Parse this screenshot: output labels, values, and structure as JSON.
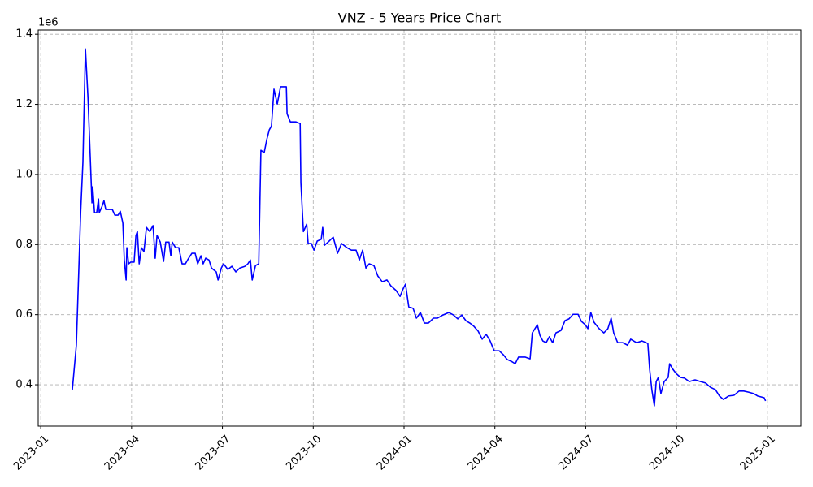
{
  "chart_data": {
    "type": "line",
    "title": "VNZ - 5 Years Price Chart",
    "y_offset_label": "1e6",
    "color": "#0000ff",
    "grid": true,
    "xlim": [
      2022.993,
      2025.092
    ],
    "ylim": [
      282000,
      1412000
    ],
    "xticks": [
      {
        "value": 2023,
        "label": "2023-01"
      },
      {
        "value": 2023.25,
        "label": "2023-04"
      },
      {
        "value": 2023.5,
        "label": "2023-07"
      },
      {
        "value": 2023.75,
        "label": "2023-10"
      },
      {
        "value": 2024,
        "label": "2024-01"
      },
      {
        "value": 2024.25,
        "label": "2024-04"
      },
      {
        "value": 2024.5,
        "label": "2024-07"
      },
      {
        "value": 2024.75,
        "label": "2024-10"
      },
      {
        "value": 2025,
        "label": "2025-01"
      }
    ],
    "yticks": [
      {
        "value": 400000,
        "label": "0.4"
      },
      {
        "value": 600000,
        "label": "0.6"
      },
      {
        "value": 800000,
        "label": "0.8"
      },
      {
        "value": 1000000,
        "label": "1.0"
      },
      {
        "value": 1200000,
        "label": "1.2"
      },
      {
        "value": 1400000,
        "label": "1.4"
      }
    ],
    "x": [
      2023.087,
      2023.092,
      2023.098,
      2023.11,
      2023.116,
      2023.123,
      2023.13,
      2023.136,
      2023.141,
      2023.143,
      2023.148,
      2023.154,
      2023.159,
      2023.161,
      2023.168,
      2023.174,
      2023.179,
      2023.186,
      2023.197,
      2023.204,
      2023.213,
      2023.219,
      2023.226,
      2023.23,
      2023.235,
      2023.237,
      2023.242,
      2023.248,
      2023.257,
      2023.262,
      2023.266,
      2023.271,
      2023.277,
      2023.284,
      2023.291,
      2023.3,
      2023.309,
      2023.315,
      2023.32,
      2023.329,
      2023.338,
      2023.344,
      2023.353,
      2023.358,
      2023.362,
      2023.371,
      2023.38,
      2023.389,
      2023.398,
      2023.407,
      2023.416,
      2023.425,
      2023.432,
      2023.441,
      2023.447,
      2023.454,
      2023.463,
      2023.47,
      2023.483,
      2023.488,
      2023.497,
      2023.503,
      2023.515,
      2023.526,
      2023.537,
      2023.548,
      2023.562,
      2023.57,
      2023.577,
      2023.582,
      2023.591,
      2023.6,
      2023.606,
      2023.615,
      2023.622,
      2023.629,
      2023.635,
      2023.642,
      2023.651,
      2023.66,
      2023.676,
      2023.678,
      2023.687,
      2023.693,
      2023.702,
      2023.714,
      2023.716,
      2023.723,
      2023.732,
      2023.736,
      2023.745,
      2023.752,
      2023.761,
      2023.772,
      2023.776,
      2023.781,
      2023.794,
      2023.805,
      2023.817,
      2023.828,
      2023.843,
      2023.855,
      2023.868,
      2023.877,
      2023.886,
      2023.895,
      2023.904,
      2023.917,
      2023.928,
      2023.94,
      2023.953,
      2023.964,
      2023.978,
      2023.989,
      2023.998,
      2024.004,
      2024.013,
      2024.025,
      2024.034,
      2024.045,
      2024.056,
      2024.067,
      2024.081,
      2024.092,
      2024.107,
      2024.123,
      2024.136,
      2024.148,
      2024.159,
      2024.17,
      2024.181,
      2024.192,
      2024.204,
      2024.215,
      2024.226,
      2024.237,
      2024.248,
      2024.262,
      2024.273,
      2024.284,
      2024.295,
      2024.306,
      2024.315,
      2024.333,
      2024.347,
      2024.353,
      2024.367,
      2024.374,
      2024.382,
      2024.391,
      2024.4,
      2024.409,
      2024.418,
      2024.432,
      2024.443,
      2024.454,
      2024.465,
      2024.479,
      2024.488,
      2024.499,
      2024.506,
      2024.514,
      2024.523,
      2024.537,
      2024.55,
      2024.561,
      2024.57,
      2024.577,
      2024.588,
      2024.602,
      2024.615,
      2024.624,
      2024.64,
      2024.655,
      2024.671,
      2024.676,
      2024.682,
      2024.689,
      2024.694,
      2024.7,
      2024.707,
      2024.716,
      2024.727,
      2024.731,
      2024.74,
      2024.749,
      2024.761,
      2024.772,
      2024.785,
      2024.801,
      2024.816,
      2024.83,
      2024.843,
      2024.857,
      2024.868,
      2024.879,
      2024.893,
      2024.908,
      2024.922,
      2024.935,
      2024.948,
      2024.962,
      2024.973,
      2024.984,
      2024.991,
      2024.995
    ],
    "values": [
      386000,
      444000,
      513000,
      895000,
      1034000,
      1358000,
      1219000,
      1057000,
      919000,
      965000,
      891000,
      891000,
      930000,
      891000,
      907000,
      925000,
      900000,
      900000,
      900000,
      884000,
      884000,
      895000,
      861000,
      756000,
      699000,
      791000,
      745000,
      750000,
      750000,
      826000,
      837000,
      745000,
      791000,
      780000,
      849000,
      837000,
      854000,
      761000,
      826000,
      807000,
      752000,
      807000,
      807000,
      768000,
      807000,
      791000,
      791000,
      745000,
      745000,
      761000,
      775000,
      775000,
      745000,
      768000,
      745000,
      761000,
      756000,
      733000,
      722000,
      699000,
      733000,
      745000,
      729000,
      738000,
      722000,
      733000,
      738000,
      745000,
      756000,
      699000,
      740000,
      745000,
      1069000,
      1062000,
      1099000,
      1127000,
      1138000,
      1243000,
      1201000,
      1250000,
      1250000,
      1173000,
      1150000,
      1150000,
      1150000,
      1145000,
      976000,
      837000,
      858000,
      803000,
      803000,
      784000,
      810000,
      815000,
      849000,
      798000,
      810000,
      821000,
      775000,
      803000,
      791000,
      784000,
      784000,
      756000,
      784000,
      733000,
      745000,
      740000,
      710000,
      694000,
      699000,
      682000,
      669000,
      652000,
      675000,
      687000,
      622000,
      618000,
      590000,
      606000,
      576000,
      576000,
      590000,
      590000,
      599000,
      606000,
      599000,
      588000,
      599000,
      583000,
      576000,
      567000,
      553000,
      530000,
      544000,
      525000,
      497000,
      497000,
      486000,
      472000,
      467000,
      460000,
      479000,
      479000,
      474000,
      548000,
      571000,
      541000,
      525000,
      520000,
      537000,
      520000,
      548000,
      555000,
      583000,
      588000,
      601000,
      601000,
      581000,
      571000,
      560000,
      606000,
      578000,
      560000,
      548000,
      560000,
      590000,
      548000,
      520000,
      520000,
      513000,
      530000,
      520000,
      525000,
      518000,
      444000,
      386000,
      340000,
      409000,
      421000,
      375000,
      409000,
      421000,
      460000,
      444000,
      432000,
      421000,
      419000,
      409000,
      414000,
      409000,
      405000,
      393000,
      386000,
      368000,
      358000,
      368000,
      370000,
      382000,
      382000,
      379000,
      375000,
      368000,
      365000,
      363000,
      354000
    ]
  }
}
